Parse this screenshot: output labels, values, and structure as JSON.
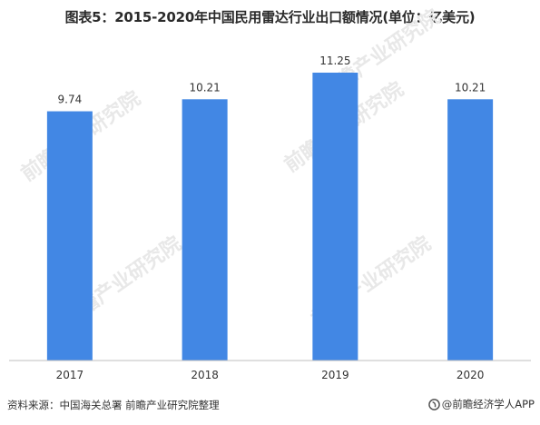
{
  "title": "图表5：2015-2020年中国民用雷达行业出口额情况(单位：亿美元)",
  "source_text": "资料来源：中国海关总署 前瞻产业研究院整理",
  "credit_text": "@前瞻经济学人APP",
  "watermark_text": "前瞻产业研究院",
  "colors": {
    "bar": "#4287E4",
    "axis": "#bfbfbf",
    "text": "#333333"
  },
  "chart_data": {
    "type": "bar",
    "title": "图表5：2015-2020年中国民用雷达行业出口额情况(单位：亿美元)",
    "categories": [
      "2017",
      "2018",
      "2019",
      "2020"
    ],
    "values": [
      9.74,
      10.21,
      11.25,
      10.21
    ],
    "value_labels": [
      "9.74",
      "10.21",
      "11.25",
      "10.21"
    ],
    "xlabel": "",
    "ylabel": "",
    "ylim": [
      0,
      11.25
    ],
    "grid": false,
    "legend": "none"
  }
}
